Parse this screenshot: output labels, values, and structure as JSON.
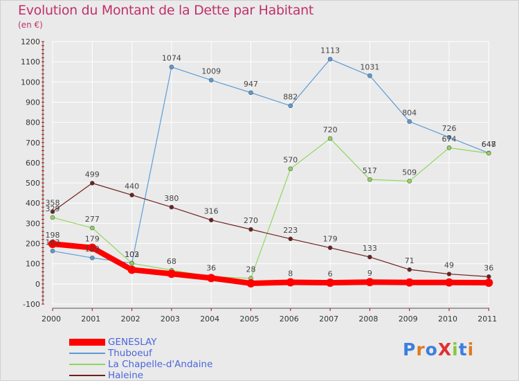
{
  "title": "Evolution du Montant de la Dette par Habitant",
  "subtitle": "(en €)",
  "logo": "ProXiti",
  "colors": {
    "background": "#eaeaea",
    "grid": "#ffffff",
    "title": "#c0306a",
    "legend_text": "#4a66dd"
  },
  "chart_data": {
    "type": "line",
    "title": "Evolution du Montant de la Dette par Habitant",
    "subtitle": "(en €)",
    "xlabel": "",
    "ylabel": "",
    "categories": [
      "2000",
      "2001",
      "2002",
      "2003",
      "2004",
      "2005",
      "2006",
      "2007",
      "2008",
      "2009",
      "2010",
      "2011"
    ],
    "ylim": [
      -100,
      1200
    ],
    "yticks": [
      -100,
      0,
      100,
      200,
      300,
      400,
      500,
      600,
      700,
      800,
      900,
      1000,
      1100,
      1200
    ],
    "grid": true,
    "legend_position": "bottom-left",
    "series": [
      {
        "name": "GENESLAY",
        "color": "#ff0000",
        "values": [
          198,
          179,
          70,
          50,
          29,
          3,
          8,
          6,
          9,
          7,
          7,
          6
        ],
        "labels": [
          "198",
          "179",
          "",
          "",
          "",
          "",
          "8",
          "6",
          "9",
          "",
          "",
          ""
        ],
        "thick": true
      },
      {
        "name": "Thuboeuf",
        "color": "#5b9bd5",
        "values": [
          163,
          129,
          103,
          1074,
          1009,
          947,
          882,
          1113,
          1031,
          804,
          726,
          648
        ],
        "labels": [
          "163",
          "129",
          "103",
          "1074",
          "1009",
          "947",
          "882",
          "1113",
          "1031",
          "804",
          "726",
          "648"
        ]
      },
      {
        "name": "La Chapelle-d'Andaine",
        "color": "#8fd65b",
        "values": [
          329,
          277,
          102,
          68,
          36,
          28,
          570,
          720,
          517,
          509,
          674,
          647
        ],
        "labels": [
          "329",
          "277",
          "102",
          "68",
          "36",
          "28",
          "570",
          "720",
          "517",
          "509",
          "674",
          "647"
        ]
      },
      {
        "name": "Haleine",
        "color": "#6e1f1f",
        "values": [
          358,
          499,
          440,
          380,
          316,
          270,
          223,
          179,
          133,
          71,
          49,
          36
        ],
        "labels": [
          "358",
          "499",
          "440",
          "380",
          "316",
          "270",
          "223",
          "179",
          "133",
          "71",
          "49",
          "36"
        ]
      }
    ]
  }
}
